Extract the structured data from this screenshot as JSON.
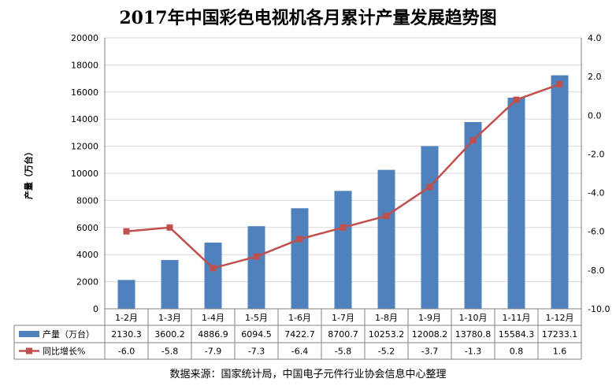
{
  "chart_data": {
    "type": "bar+line",
    "title": "2017年中国彩色电视机各月累计产量发展趋势图",
    "categories": [
      "1-2月",
      "1-3月",
      "1-4月",
      "1-5月",
      "1-6月",
      "1-7月",
      "1-8月",
      "1-9月",
      "1-10月",
      "1-11月",
      "1-12月"
    ],
    "series": [
      {
        "name": "产量（万台）",
        "kind": "bar",
        "axis": "left",
        "color": "#4f81bd",
        "values": [
          2130.3,
          3600.2,
          4886.9,
          6094.5,
          7422.7,
          8700.7,
          10253.2,
          12008.2,
          13780.8,
          15584.3,
          17233.1
        ],
        "labels": [
          "2130.3",
          "3600.2",
          "4886.9",
          "6094.5",
          "7422.7",
          "8700.7",
          "10253.2",
          "12008.2",
          "13780.8",
          "15584.3",
          "17233.1"
        ]
      },
      {
        "name": "同比增长%",
        "kind": "line",
        "axis": "right",
        "color": "#c0504d",
        "values": [
          -6.0,
          -5.8,
          -7.9,
          -7.3,
          -6.4,
          -5.8,
          -5.2,
          -3.7,
          -1.3,
          0.8,
          1.6
        ],
        "labels": [
          "-6.0",
          "-5.8",
          "-7.9",
          "-7.3",
          "-6.4",
          "-5.8",
          "-5.2",
          "-3.7",
          "-1.3",
          "0.8",
          "1.6"
        ]
      }
    ],
    "ylabel": "产量（万台）",
    "ylim": [
      0,
      20000
    ],
    "yticks": [
      "0",
      "2000",
      "4000",
      "6000",
      "8000",
      "10000",
      "12000",
      "14000",
      "16000",
      "18000",
      "20000"
    ],
    "y2lim": [
      -10.0,
      4.0
    ],
    "y2ticks": [
      "-10.0",
      "-8.0",
      "-6.0",
      "-4.0",
      "-2.0",
      "0.0",
      "2.0",
      "4.0"
    ],
    "grid": true,
    "legend": "data-table-left",
    "source": "数据来源：国家统计局，中国电子元件行业协会信息中心整理"
  }
}
